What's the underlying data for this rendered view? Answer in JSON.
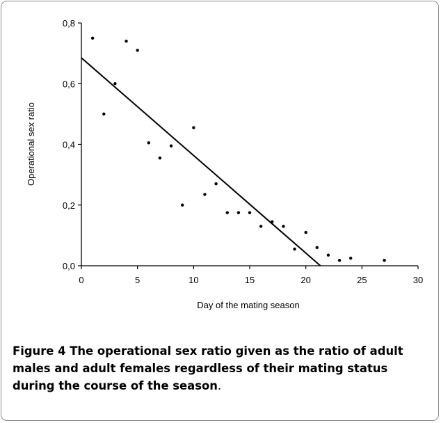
{
  "chart_data": {
    "type": "scatter",
    "xlabel": "Day of the mating season",
    "ylabel": "Operational sex ratio",
    "xlim": [
      0,
      30
    ],
    "ylim": [
      0,
      0.8
    ],
    "x_ticks": [
      "0",
      "5",
      "10",
      "15",
      "20",
      "25",
      "30"
    ],
    "y_ticks": [
      "0,0",
      "0,2",
      "0,4",
      "0,6",
      "0,8"
    ],
    "points": [
      {
        "x": 1,
        "y": 0.75
      },
      {
        "x": 2,
        "y": 0.5
      },
      {
        "x": 3,
        "y": 0.6
      },
      {
        "x": 4,
        "y": 0.74
      },
      {
        "x": 5,
        "y": 0.71
      },
      {
        "x": 6,
        "y": 0.405
      },
      {
        "x": 7,
        "y": 0.355
      },
      {
        "x": 8,
        "y": 0.395
      },
      {
        "x": 9,
        "y": 0.2
      },
      {
        "x": 10,
        "y": 0.455
      },
      {
        "x": 11,
        "y": 0.235
      },
      {
        "x": 12,
        "y": 0.27
      },
      {
        "x": 13,
        "y": 0.175
      },
      {
        "x": 14,
        "y": 0.175
      },
      {
        "x": 15,
        "y": 0.175
      },
      {
        "x": 16,
        "y": 0.13
      },
      {
        "x": 17,
        "y": 0.145
      },
      {
        "x": 18,
        "y": 0.13
      },
      {
        "x": 19,
        "y": 0.055
      },
      {
        "x": 20,
        "y": 0.11
      },
      {
        "x": 21,
        "y": 0.06
      },
      {
        "x": 22,
        "y": 0.035
      },
      {
        "x": 23,
        "y": 0.018
      },
      {
        "x": 24,
        "y": 0.025
      },
      {
        "x": 27,
        "y": 0.018
      }
    ],
    "trendline": {
      "x": [
        0,
        21.3
      ],
      "y": [
        0.685,
        0
      ]
    },
    "grid": false,
    "legend": "none"
  },
  "caption": {
    "label": "Figure 4",
    "text": " The operational sex ratio given as the ratio of adult males and adult females regardless of their mating status during the course of the season",
    "end": "."
  }
}
